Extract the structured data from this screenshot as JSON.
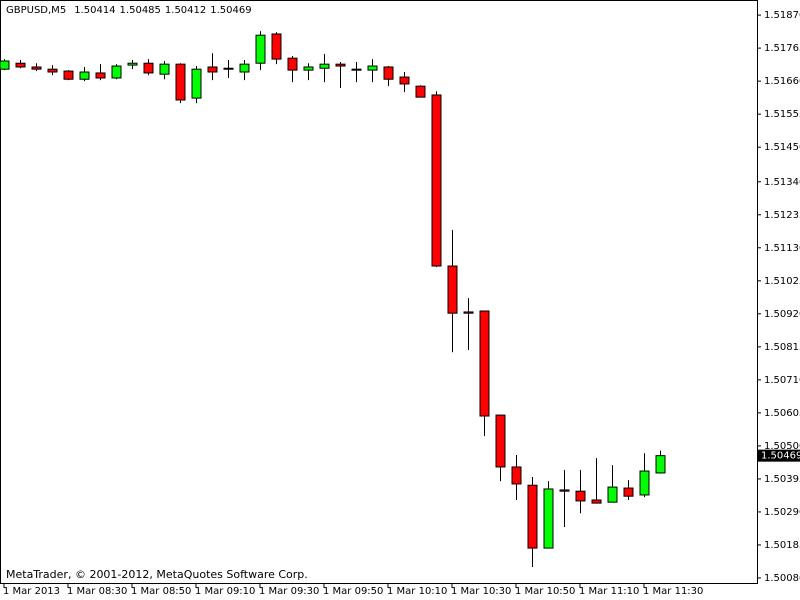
{
  "chart_data": {
    "type": "candlestick",
    "symbol": "GBPUSD,M5",
    "watermark": "MetaTrader, © 2001-2012, MetaQuotes Software Corp.",
    "up_color": "#00ff00",
    "down_color": "#ff0000",
    "categories": [
      "1 Mar 2013",
      null,
      null,
      null,
      "1 Mar 08:30",
      null,
      null,
      null,
      "1 Mar 08:50",
      null,
      null,
      null,
      "1 Mar 09:10",
      null,
      null,
      null,
      "1 Mar 09:30",
      null,
      null,
      null,
      "1 Mar 09:50",
      null,
      null,
      null,
      "1 Mar 10:10",
      null,
      null,
      null,
      "1 Mar 10:30",
      null,
      null,
      null,
      "1 Mar 10:50",
      null,
      null,
      null,
      "1 Mar 11:10",
      null,
      null,
      null,
      "1 Mar 11:30",
      null
    ],
    "open": [
      1.51698,
      1.51717,
      1.51705,
      1.51698,
      1.51692,
      1.51666,
      1.51686,
      1.5167,
      1.51711,
      1.51717,
      1.51682,
      1.51714,
      1.51606,
      1.51705,
      1.51701,
      1.51689,
      1.51717,
      1.5181,
      1.51733,
      1.51695,
      1.51701,
      1.51714,
      1.51698,
      1.51695,
      1.51705,
      1.51673,
      1.51644,
      1.51616,
      1.51072,
      1.50926,
      1.50929,
      1.50598,
      1.50433,
      1.50375,
      1.50175,
      1.5036,
      1.50356,
      1.50328,
      1.50321,
      1.50366,
      1.50344,
      1.50414
    ],
    "high": [
      1.5173,
      1.51727,
      1.51717,
      1.51711,
      1.51695,
      1.51705,
      1.51714,
      1.51714,
      1.51727,
      1.5173,
      1.51724,
      1.51717,
      1.51708,
      1.51749,
      1.51727,
      1.51727,
      1.51819,
      1.51816,
      1.5174,
      1.51717,
      1.51746,
      1.51721,
      1.51721,
      1.5173,
      1.51708,
      1.51689,
      1.51647,
      1.51628,
      1.51186,
      1.5097,
      1.50929,
      1.50598,
      1.50471,
      1.50401,
      1.50388,
      1.50423,
      1.50423,
      1.50461,
      1.50439,
      1.50391,
      1.50477,
      1.50485
    ],
    "low": [
      1.51695,
      1.51701,
      1.51692,
      1.51679,
      1.51663,
      1.5166,
      1.51663,
      1.51666,
      1.51698,
      1.51679,
      1.51666,
      1.5159,
      1.5159,
      1.51663,
      1.5167,
      1.51663,
      1.51695,
      1.51714,
      1.51657,
      1.51663,
      1.51657,
      1.51638,
      1.51657,
      1.51657,
      1.51644,
      1.51625,
      1.51609,
      1.51069,
      1.50798,
      1.50805,
      1.50531,
      1.50388,
      1.50328,
      1.50115,
      1.50175,
      1.50242,
      1.50286,
      1.50318,
      1.50321,
      1.50328,
      1.50337,
      1.50412
    ],
    "close": [
      1.51724,
      1.51705,
      1.51698,
      1.51689,
      1.51666,
      1.51689,
      1.5167,
      1.51708,
      1.51717,
      1.51686,
      1.51714,
      1.516,
      1.51698,
      1.51689,
      1.51698,
      1.51714,
      1.51806,
      1.5173,
      1.51695,
      1.51705,
      1.51714,
      1.51708,
      1.51695,
      1.51708,
      1.51666,
      1.51651,
      1.51609,
      1.51072,
      1.50922,
      1.50922,
      1.50595,
      1.50433,
      1.50379,
      1.50175,
      1.50363,
      1.50356,
      1.50325,
      1.50318,
      1.50369,
      1.5034,
      1.5042,
      1.50469
    ],
    "ylim": [
      1.50064,
      1.51918
    ],
    "yticks": [
      {
        "value": 1.5187,
        "label": "1.51870"
      },
      {
        "value": 1.51765,
        "label": "1.51765"
      },
      {
        "value": 1.5166,
        "label": "1.51660"
      },
      {
        "value": 1.51555,
        "label": "1.51555"
      },
      {
        "value": 1.5145,
        "label": "1.51450"
      },
      {
        "value": 1.5134,
        "label": "1.51340"
      },
      {
        "value": 1.51235,
        "label": "1.51235"
      },
      {
        "value": 1.5113,
        "label": "1.51130"
      },
      {
        "value": 1.51025,
        "label": "1.51025"
      },
      {
        "value": 1.5092,
        "label": "1.50920"
      },
      {
        "value": 1.50815,
        "label": "1.50815"
      },
      {
        "value": 1.5071,
        "label": "1.50710"
      },
      {
        "value": 1.50605,
        "label": "1.50605"
      },
      {
        "value": 1.505,
        "label": "1.50500"
      },
      {
        "value": 1.50395,
        "label": "1.50395"
      },
      {
        "value": 1.5029,
        "label": "1.50290"
      },
      {
        "value": 1.50185,
        "label": "1.50185"
      },
      {
        "value": 1.5008,
        "label": "1.50080"
      }
    ]
  }
}
